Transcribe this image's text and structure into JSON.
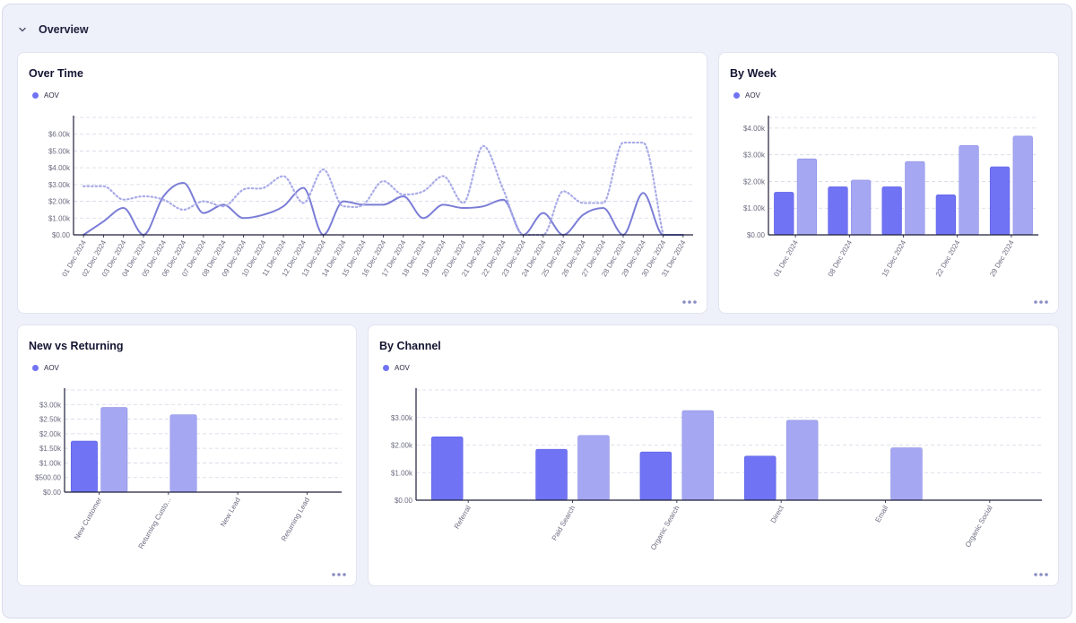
{
  "section": {
    "title": "Overview",
    "collapse_icon": "chevron-down-icon"
  },
  "colors": {
    "primary": "#7173f5",
    "secondary": "#a5a7f2",
    "line": "#7b7dd6",
    "dotted": "#a9abe8",
    "axis": "#1e1e3a",
    "grid": "#d4d7e6",
    "text": "#6b6b80"
  },
  "more_icon": "more-horizontal-icon",
  "chart_data": [
    {
      "id": "over_time",
      "type": "line",
      "title": "Over Time",
      "legend": [
        "AOV"
      ],
      "x": [
        "01 Dec 2024",
        "02 Dec 2024",
        "03 Dec 2024",
        "04 Dec 2024",
        "05 Dec 2024",
        "06 Dec 2024",
        "07 Dec 2024",
        "08 Dec 2024",
        "09 Dec 2024",
        "10 Dec 2024",
        "11 Dec 2024",
        "12 Dec 2024",
        "13 Dec 2024",
        "14 Dec 2024",
        "15 Dec 2024",
        "16 Dec 2024",
        "17 Dec 2024",
        "18 Dec 2024",
        "19 Dec 2024",
        "20 Dec 2024",
        "21 Dec 2024",
        "22 Dec 2024",
        "23 Dec 2024",
        "24 Dec 2024",
        "25 Dec 2024",
        "26 Dec 2024",
        "27 Dec 2024",
        "28 Dec 2024",
        "29 Dec 2024",
        "30 Dec 2024",
        "31 Dec 2024"
      ],
      "series": [
        {
          "values": [
            0,
            800,
            1600,
            0,
            2300,
            3100,
            1300,
            1800,
            1000,
            1200,
            1700,
            2800,
            0,
            2000,
            1800,
            1800,
            2300,
            1000,
            1800,
            1600,
            1700,
            2100,
            0,
            1300,
            0,
            1200,
            1600,
            0,
            2500,
            0,
            0
          ]
        },
        {
          "values": [
            2900,
            2900,
            2100,
            2300,
            2100,
            1500,
            2000,
            1700,
            2700,
            2800,
            3500,
            1900,
            3900,
            1700,
            1800,
            3200,
            2400,
            2600,
            3500,
            1900,
            5300,
            2700,
            0,
            0,
            2600,
            1900,
            1900,
            5500,
            5500,
            0,
            null
          ]
        }
      ],
      "y_ticks": [
        "$0.00",
        "$1.00k",
        "$2.00k",
        "$3.00k",
        "$4.00k",
        "$5.00k",
        "$6.00k"
      ],
      "ylim": [
        0,
        7000
      ]
    },
    {
      "id": "by_week",
      "type": "bar",
      "title": "By Week",
      "legend": [
        "AOV"
      ],
      "categories": [
        "01 Dec 2024",
        "08 Dec 2024",
        "15 Dec 2024",
        "22 Dec 2024",
        "29 Dec 2024"
      ],
      "series": [
        {
          "values": [
            1600,
            1800,
            1800,
            1500,
            2550
          ]
        },
        {
          "values": [
            2850,
            2050,
            2750,
            3350,
            3700
          ]
        }
      ],
      "y_ticks": [
        "$0.00",
        "$1.00k",
        "$2.00k",
        "$3.00k",
        "$4.00k"
      ],
      "ylim": [
        0,
        4400
      ]
    },
    {
      "id": "new_vs_returning",
      "type": "bar",
      "title": "New vs Returning",
      "legend": [
        "AOV"
      ],
      "categories": [
        "New Customer",
        "Returning Custo...",
        "New Lead",
        "Returning Lead"
      ],
      "series": [
        {
          "values": [
            1750,
            0,
            0,
            0
          ]
        },
        {
          "values": [
            2900,
            2650,
            0,
            0
          ]
        }
      ],
      "y_ticks": [
        "$0.00",
        "$500.00",
        "$1.00k",
        "$1.50k",
        "$2.00k",
        "$2.50k",
        "$3.00k"
      ],
      "ylim": [
        0,
        3500
      ]
    },
    {
      "id": "by_channel",
      "type": "bar",
      "title": "By Channel",
      "legend": [
        "AOV"
      ],
      "categories": [
        "Referral",
        "Paid Search",
        "Organic Search",
        "Direct",
        "Email",
        "Organic Social"
      ],
      "series": [
        {
          "values": [
            2300,
            1850,
            1750,
            1600,
            0,
            0
          ]
        },
        {
          "values": [
            0,
            2350,
            3250,
            2900,
            1900,
            0
          ]
        }
      ],
      "y_ticks": [
        "$0.00",
        "$1.00k",
        "$2.00k",
        "$3.00k"
      ],
      "ylim": [
        0,
        4000
      ]
    }
  ]
}
